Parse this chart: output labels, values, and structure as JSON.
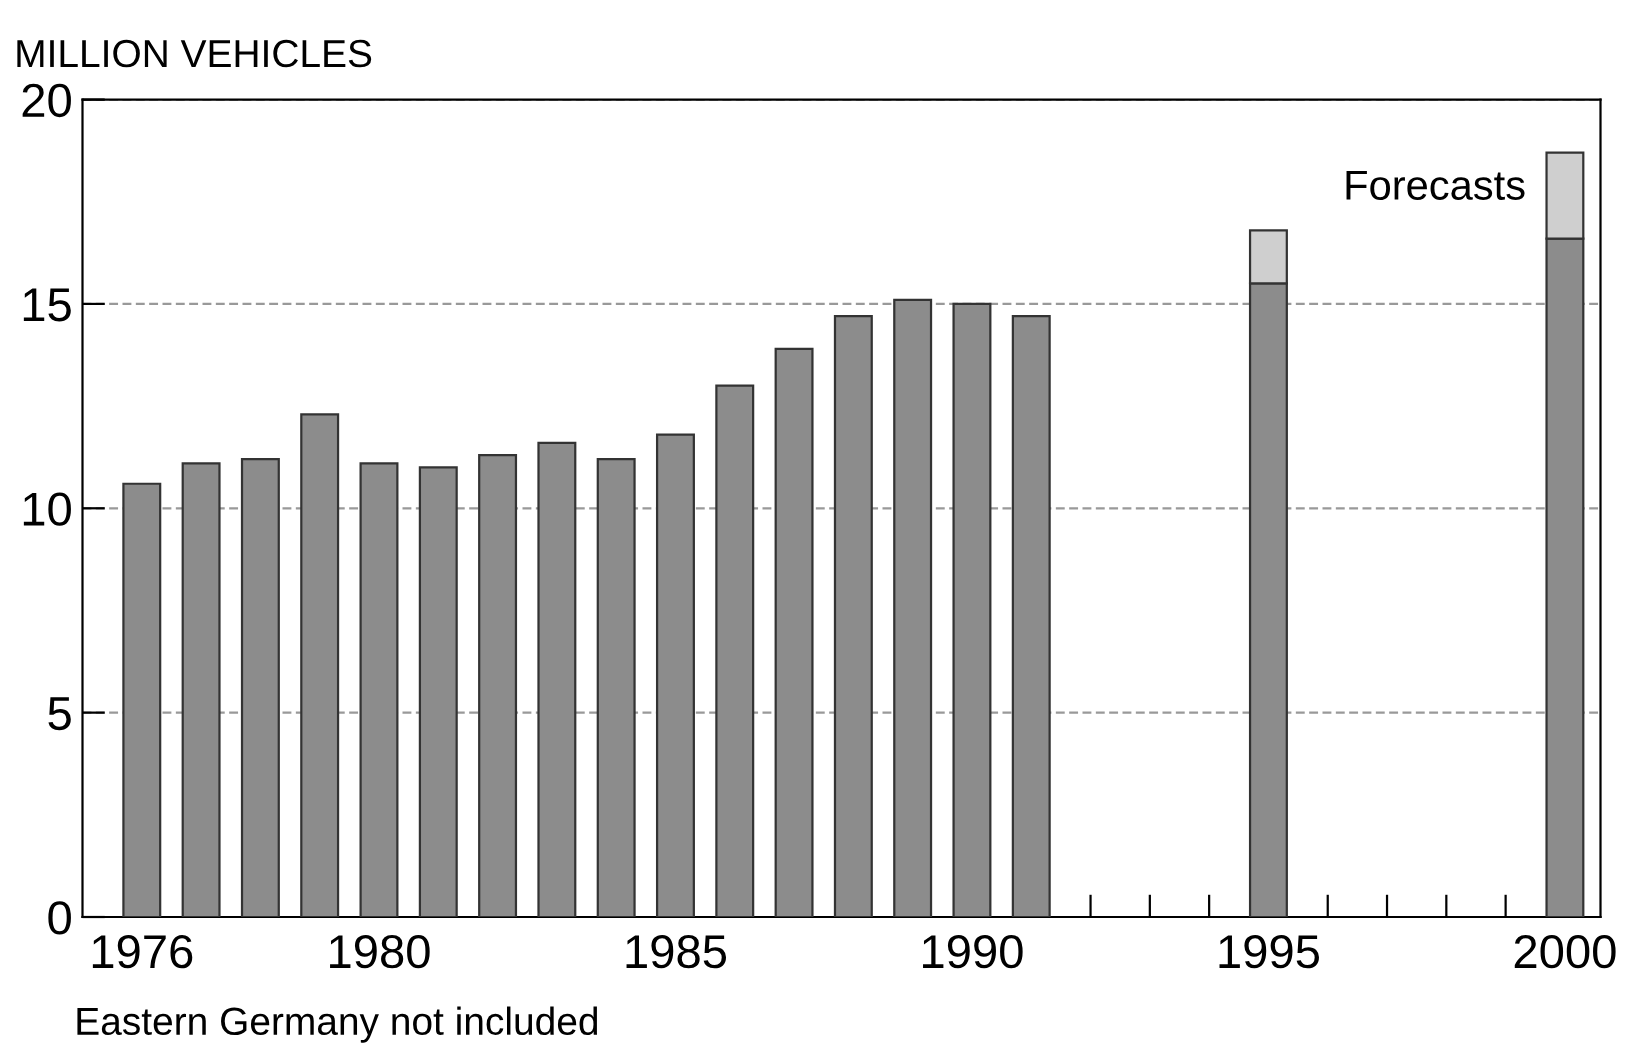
{
  "chart_data": {
    "type": "bar",
    "stacked": true,
    "ylabel": "MILLION VEHICLES",
    "x": [
      1976,
      1977,
      1978,
      1979,
      1980,
      1981,
      1982,
      1983,
      1984,
      1985,
      1986,
      1987,
      1988,
      1989,
      1990,
      1991,
      1995,
      2000
    ],
    "series": [
      {
        "color": "#8c8c8c",
        "values": [
          10.6,
          11.1,
          11.2,
          12.3,
          11.1,
          11.0,
          11.3,
          11.6,
          11.2,
          11.8,
          13.0,
          13.9,
          14.7,
          15.1,
          15.0,
          14.7,
          15.5,
          16.6
        ]
      },
      {
        "color": "#cfcfcf",
        "values": [
          null,
          null,
          null,
          null,
          null,
          null,
          null,
          null,
          null,
          null,
          null,
          null,
          null,
          null,
          null,
          null,
          1.3,
          2.1
        ]
      }
    ],
    "xlim": [
      1975,
      2000.6
    ],
    "ylim": [
      0,
      20
    ],
    "yticks": [
      0,
      5,
      10,
      15,
      20
    ],
    "xticks": [
      1976,
      {
        "value": 1977,
        "label": null
      },
      {
        "value": 1978,
        "label": null
      },
      {
        "value": 1979,
        "label": null
      },
      1980,
      {
        "value": 1981,
        "label": null
      },
      {
        "value": 1982,
        "label": null
      },
      {
        "value": 1983,
        "label": null
      },
      {
        "value": 1984,
        "label": null
      },
      1985,
      {
        "value": 1986,
        "label": null
      },
      {
        "value": 1987,
        "label": null
      },
      {
        "value": 1988,
        "label": null
      },
      {
        "value": 1989,
        "label": null
      },
      1990,
      {
        "value": 1991,
        "label": null
      },
      {
        "value": 1992,
        "label": null
      },
      {
        "value": 1993,
        "label": null
      },
      {
        "value": 1994,
        "label": null
      },
      1995,
      {
        "value": 1996,
        "label": null
      },
      {
        "value": 1997,
        "label": null
      },
      {
        "value": 1998,
        "label": null
      },
      {
        "value": 1999,
        "label": null
      },
      2000
    ],
    "grid": "y",
    "annotations": [
      {
        "text": "Forecasts",
        "x": 2000,
        "y": 18.7
      },
      "Eastern Germany not included"
    ]
  }
}
